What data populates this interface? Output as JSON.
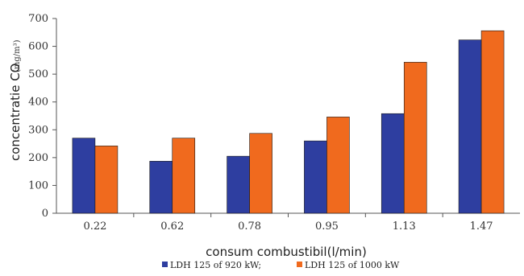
{
  "chart_data": {
    "type": "bar",
    "categories": [
      "0.22",
      "0.62",
      "0.78",
      "0.95",
      "1.13",
      "1.47"
    ],
    "series": [
      {
        "name": "LDH 125 of 920 kW;",
        "color": "#2e3ea0",
        "values": [
          270,
          187,
          205,
          260,
          358,
          623
        ]
      },
      {
        "name": "LDH 125 of 1000 kW",
        "color": "#f06a1e",
        "values": [
          242,
          270,
          287,
          346,
          543,
          656
        ]
      }
    ],
    "xlabel": "consum combustibil(l/min)",
    "ylabel": "concentratie CO",
    "ylabel_unit": "(mg/m³)",
    "ylim": [
      0,
      700
    ],
    "yticks": [
      "0",
      "100",
      "200",
      "300",
      "400",
      "500",
      "600",
      "700"
    ],
    "grid": false,
    "legend": "bottom"
  }
}
